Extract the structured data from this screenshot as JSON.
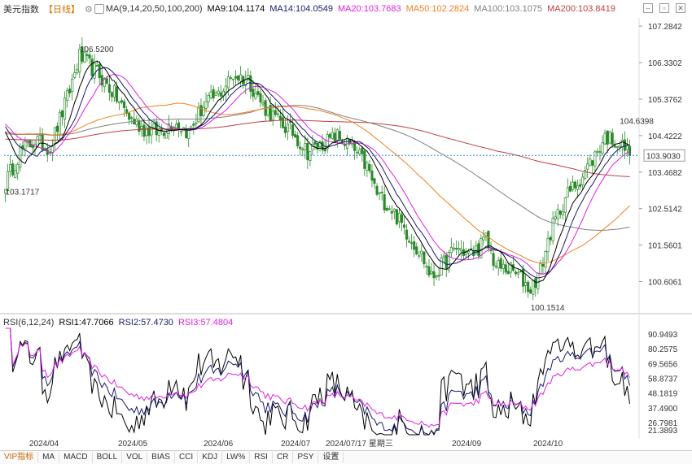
{
  "header": {
    "title": "美元指数",
    "period": "日线",
    "ma_label": "MA(9,14,20,50,100,200)",
    "ma9": "MA9:104.1174",
    "ma14": "MA14:104.0549",
    "ma20": "MA20:103.7683",
    "ma50": "MA50:102.2824",
    "ma100": "MA100:103.1075",
    "ma200": "MA200:103.8419"
  },
  "rsi_header": {
    "label": "RSI(6,12,24)",
    "rsi1": "RSI1:47.7066",
    "rsi2": "RSI2:57.4730",
    "rsi3": "RSI3:57.4804"
  },
  "colors": {
    "ma9": "#000000",
    "ma14": "#1a1a6e",
    "ma20": "#e020e0",
    "ma50": "#f08020",
    "ma100": "#808080",
    "ma200": "#c04040",
    "up": "#2a8a2a",
    "down": "#2a8a2a",
    "current": "#3090d0",
    "high_label": "#d02020",
    "low_label": "#2a8a2a"
  },
  "toolbar": {
    "items": [
      "VIP指标",
      "MA",
      "MACD",
      "BOLL",
      "VOL",
      "BIAS",
      "CCI",
      "KDJ",
      "LW%",
      "RSI",
      "CR",
      "PSY",
      "设置"
    ]
  },
  "chart_data": [
    {
      "type": "candlestick",
      "title": "美元指数",
      "x_labels": [
        "2024/04",
        "2024/05",
        "2024/06",
        "2024/07",
        "2024/09",
        "2024/10"
      ],
      "crosshair_label": "2024/07/17 星期三",
      "y_ticks": [
        "107.2842",
        "106.3302",
        "105.3762",
        "104.4222",
        "103.4682",
        "102.5142",
        "101.5601",
        "100.6061"
      ],
      "ylim": [
        100.0,
        107.5
      ],
      "current_price": "103.9030",
      "annotations": {
        "high1": "106.5200",
        "high2": "104.6398",
        "low1": "103.1717",
        "low2": "100.1514"
      },
      "anchors": [
        [
          0,
          103.2
        ],
        [
          6,
          104.0
        ],
        [
          12,
          104.3
        ],
        [
          18,
          104.1
        ],
        [
          25,
          105.4
        ],
        [
          30,
          106.5
        ],
        [
          38,
          106.0
        ],
        [
          44,
          105.5
        ],
        [
          50,
          104.9
        ],
        [
          56,
          104.6
        ],
        [
          62,
          104.5
        ],
        [
          68,
          104.8
        ],
        [
          74,
          104.5
        ],
        [
          80,
          105.2
        ],
        [
          86,
          105.5
        ],
        [
          92,
          106.0
        ],
        [
          98,
          105.9
        ],
        [
          104,
          105.2
        ],
        [
          110,
          104.8
        ],
        [
          116,
          104.5
        ],
        [
          122,
          104.0
        ],
        [
          128,
          104.2
        ],
        [
          134,
          104.4
        ],
        [
          140,
          104.1
        ],
        [
          146,
          103.6
        ],
        [
          150,
          102.9
        ],
        [
          156,
          102.5
        ],
        [
          162,
          101.9
        ],
        [
          168,
          101.3
        ],
        [
          172,
          100.7
        ],
        [
          176,
          101.0
        ],
        [
          182,
          101.5
        ],
        [
          188,
          101.3
        ],
        [
          194,
          101.7
        ],
        [
          198,
          101.0
        ],
        [
          204,
          100.9
        ],
        [
          208,
          100.7
        ],
        [
          212,
          100.4
        ],
        [
          216,
          100.9
        ],
        [
          220,
          101.9
        ],
        [
          226,
          102.8
        ],
        [
          232,
          103.3
        ],
        [
          238,
          103.9
        ],
        [
          242,
          104.4
        ],
        [
          246,
          104.3
        ],
        [
          250,
          104.1
        ],
        [
          252,
          103.9
        ]
      ]
    },
    {
      "type": "line",
      "title": "RSI(6,12,24)",
      "y_ticks": [
        "90.9493",
        "80.2575",
        "69.5656",
        "58.8737",
        "48.1819",
        "37.4900",
        "26.7981",
        "21.3893"
      ],
      "ylim": [
        18,
        95
      ],
      "series": [
        {
          "name": "RSI1",
          "values": [
            47.7066
          ]
        },
        {
          "name": "RSI2",
          "values": [
            57.473
          ]
        },
        {
          "name": "RSI3",
          "values": [
            57.4804
          ]
        }
      ]
    }
  ]
}
